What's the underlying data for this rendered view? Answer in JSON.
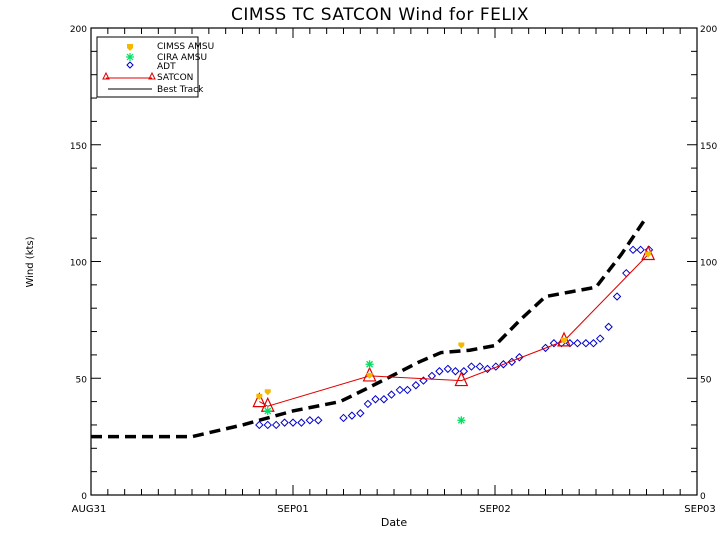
{
  "chart_data": {
    "type": "line",
    "title": "CIMSS TC SATCON Wind for  FELIX",
    "xlabel": "Date",
    "ylabel": "Wind (kts)",
    "x_units": "hours since AUG31 00Z",
    "xlim": [
      0,
      72
    ],
    "ylim": [
      0,
      200
    ],
    "x_ticks": [
      {
        "hours": 0,
        "label": "AUG31"
      },
      {
        "hours": 24,
        "label": "SEP01"
      },
      {
        "hours": 48,
        "label": "SEP02"
      },
      {
        "hours": 72,
        "label": "SEP03"
      }
    ],
    "y_ticks": [
      0,
      50,
      100,
      150,
      200
    ],
    "y_tick_labels": [
      "0",
      "50",
      "100",
      "150",
      "200"
    ],
    "grid": false,
    "legend": {
      "position": "top-left",
      "entries": [
        {
          "name": "CIMSS AMSU",
          "color": "#f5b800",
          "marker": "filled-shield"
        },
        {
          "name": "CIRA AMSU",
          "color": "#00e060",
          "marker": "asterisk"
        },
        {
          "name": "ADT",
          "color": "#0000cc",
          "marker": "diamond"
        },
        {
          "name": "SATCON",
          "color": "#e00000",
          "marker": "triangle-line"
        },
        {
          "name": "Best Track",
          "color": "#000000",
          "marker": "line"
        }
      ]
    },
    "series": [
      {
        "name": "Best Track",
        "color": "#000000",
        "style": "dashed",
        "x": [
          0,
          12,
          18,
          21,
          24,
          29.6,
          33,
          39,
          41.6,
          45,
          48,
          51,
          54,
          57,
          60,
          63,
          66
        ],
        "y": [
          25,
          25,
          30,
          33,
          36,
          40,
          46,
          57,
          61,
          62,
          64,
          75,
          85,
          87,
          89,
          103,
          119
        ]
      },
      {
        "name": "ADT",
        "color": "#0000cc",
        "style": "marker",
        "x": [
          20,
          21,
          22,
          23,
          24,
          25,
          26,
          27,
          30,
          31,
          32,
          32.9,
          33.8,
          34.8,
          35.7,
          36.7,
          37.6,
          38.6,
          39.5,
          40.5,
          41.4,
          42.4,
          43.3,
          44.3,
          45.2,
          46.2,
          47.1,
          48.1,
          49,
          50,
          50.9,
          54,
          55,
          55.9,
          56.9,
          57.8,
          58.8,
          59.7,
          60.5,
          61.5,
          62.5,
          63.6,
          64.4,
          65.3,
          66.3
        ],
        "y": [
          30,
          30,
          30,
          31,
          31,
          31,
          32,
          32,
          33,
          34,
          35,
          39,
          41,
          41,
          43,
          45,
          45,
          47,
          49,
          51,
          53,
          54,
          53,
          53,
          55,
          55,
          54,
          55,
          56,
          57,
          59,
          63,
          65,
          65,
          65,
          65,
          65,
          65,
          67,
          72,
          85,
          95,
          105,
          105,
          105
        ]
      },
      {
        "name": "SATCON",
        "color": "#e00000",
        "style": "line-triangle",
        "x": [
          20,
          21,
          33.1,
          44,
          56.2,
          66.2
        ],
        "y": [
          40,
          38,
          51,
          49,
          66,
          103
        ]
      },
      {
        "name": "CIMSS AMSU",
        "color": "#f5b800",
        "style": "marker",
        "x": [
          20,
          21,
          33.1,
          44,
          56.2,
          66.2
        ],
        "y": [
          42,
          44,
          51,
          64,
          66,
          103
        ]
      },
      {
        "name": "CIRA AMSU",
        "color": "#00e060",
        "style": "marker",
        "x": [
          21,
          33.1,
          44
        ],
        "y": [
          36,
          56,
          32
        ]
      }
    ]
  }
}
